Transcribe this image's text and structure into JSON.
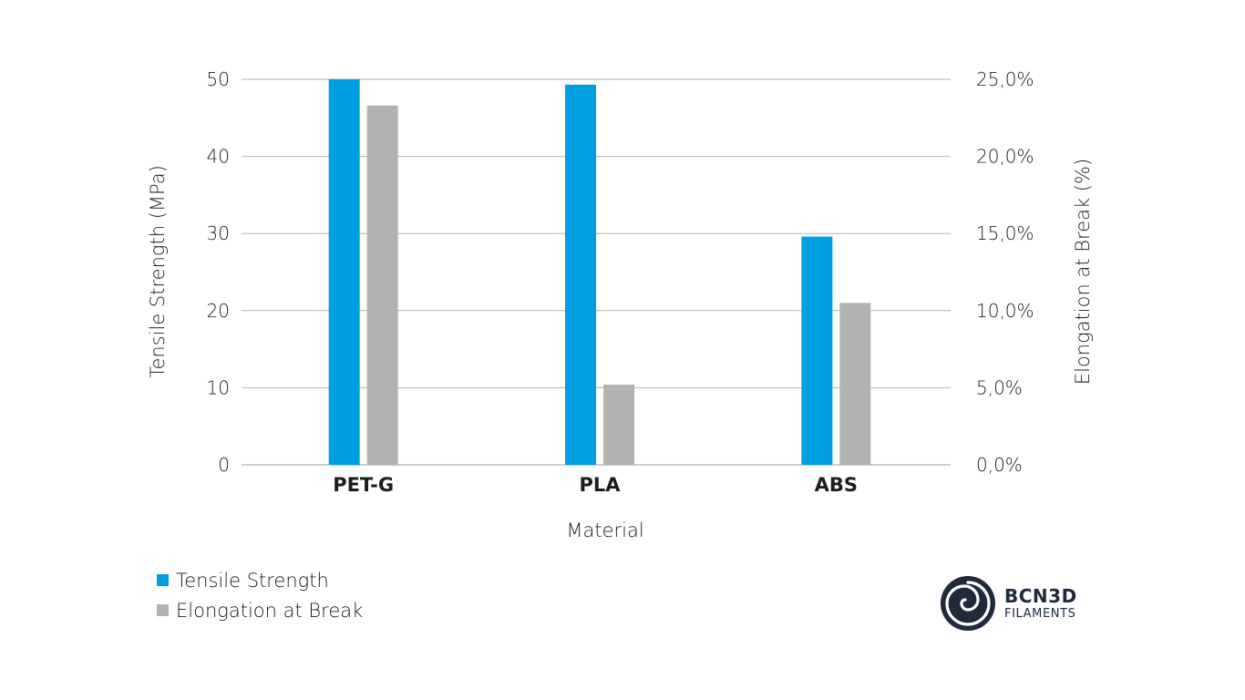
{
  "chart_data": {
    "type": "bar",
    "title": "",
    "xlabel": "Material",
    "ylabel": "Tensile  Strength (MPa)",
    "y2label": "Elongation at Break (%)",
    "categories": [
      "PET-G",
      "PLA",
      "ABS"
    ],
    "series": [
      {
        "name": "Tensile  Strength",
        "axis": "left",
        "color": "#009fe3",
        "values": [
          50,
          49.3,
          29.6
        ]
      },
      {
        "name": "Elongation at Break",
        "axis": "right",
        "color": "#b2b2b2",
        "values": [
          23.3,
          5.2,
          10.5
        ]
      }
    ],
    "ylim": [
      0,
      50
    ],
    "yticks": [
      "0",
      "10",
      "20",
      "30",
      "40",
      "50"
    ],
    "y2lim": [
      0,
      25
    ],
    "y2ticks": [
      "0,0%",
      "5,0%",
      "10,0%",
      "15,0%",
      "20,0%",
      "25,0%"
    ],
    "grid": true,
    "legend_position": "bottom-left"
  },
  "logo": {
    "name": "BCN3D",
    "subtitle": "FILAMENTS"
  }
}
